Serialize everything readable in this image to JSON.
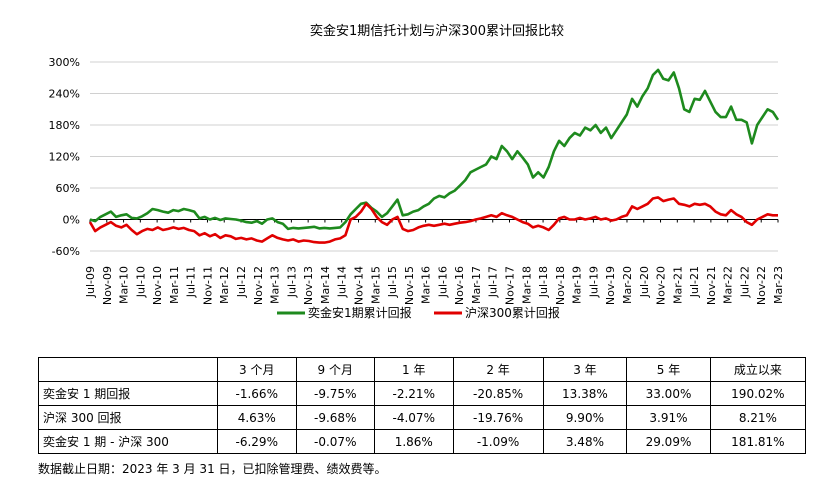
{
  "chart_data": {
    "type": "line",
    "title": "奕金安1期信托计划与沪深300累计回报比较",
    "y_ticks": [
      "300%",
      "240%",
      "180%",
      "120%",
      "60%",
      "0%",
      "-60%"
    ],
    "ylim": [
      -60,
      300
    ],
    "grid": "horizontal",
    "legend_position": "bottom",
    "x_ticks": [
      "Jul-09",
      "Nov-09",
      "Mar-10",
      "Jul-10",
      "Nov-10",
      "Mar-11",
      "Jul-11",
      "Nov-11",
      "Mar-12",
      "Jul-12",
      "Nov-12",
      "Mar-13",
      "Jul-13",
      "Nov-13",
      "Mar-14",
      "Jul-14",
      "Nov-14",
      "Mar-15",
      "Jul-15",
      "Nov-15",
      "Mar-16",
      "Jul-16",
      "Nov-16",
      "Mar-17",
      "Jul-17",
      "Nov-17",
      "Mar-18",
      "Jul-18",
      "Nov-18",
      "Mar-19",
      "Jul-19",
      "Nov-19",
      "Mar-20",
      "Jul-20",
      "Nov-20",
      "Mar-21",
      "Jul-21",
      "Nov-21",
      "Mar-22",
      "Jul-22",
      "Nov-22",
      "Mar-23"
    ],
    "series": [
      {
        "name": "奕金安1期累计回报",
        "color": "#1e8a1e",
        "points": [
          [
            0,
            0
          ],
          [
            1,
            -3
          ],
          [
            2,
            5
          ],
          [
            3,
            10
          ],
          [
            4,
            15
          ],
          [
            5,
            5
          ],
          [
            6,
            8
          ],
          [
            7,
            10
          ],
          [
            8,
            3
          ],
          [
            9,
            2
          ],
          [
            10,
            6
          ],
          [
            11,
            12
          ],
          [
            12,
            20
          ],
          [
            13,
            18
          ],
          [
            14,
            15
          ],
          [
            15,
            13
          ],
          [
            16,
            18
          ],
          [
            17,
            16
          ],
          [
            18,
            20
          ],
          [
            19,
            18
          ],
          [
            20,
            15
          ],
          [
            21,
            2
          ],
          [
            22,
            5
          ],
          [
            23,
            0
          ],
          [
            24,
            3
          ],
          [
            25,
            -1
          ],
          [
            26,
            2
          ],
          [
            27,
            1
          ],
          [
            28,
            0
          ],
          [
            29,
            -2
          ],
          [
            30,
            -5
          ],
          [
            31,
            -6
          ],
          [
            32,
            -3
          ],
          [
            33,
            -8
          ],
          [
            34,
            0
          ],
          [
            35,
            2
          ],
          [
            36,
            -5
          ],
          [
            37,
            -8
          ],
          [
            38,
            -18
          ],
          [
            39,
            -16
          ],
          [
            40,
            -17
          ],
          [
            41,
            -16
          ],
          [
            42,
            -15
          ],
          [
            43,
            -14
          ],
          [
            44,
            -17
          ],
          [
            45,
            -16
          ],
          [
            46,
            -17
          ],
          [
            47,
            -16
          ],
          [
            48,
            -15
          ],
          [
            49,
            -5
          ],
          [
            50,
            10
          ],
          [
            51,
            20
          ],
          [
            52,
            30
          ],
          [
            53,
            32
          ],
          [
            54,
            22
          ],
          [
            55,
            15
          ],
          [
            56,
            5
          ],
          [
            57,
            12
          ],
          [
            58,
            25
          ],
          [
            59,
            38
          ],
          [
            60,
            8
          ],
          [
            61,
            10
          ],
          [
            62,
            15
          ],
          [
            63,
            18
          ],
          [
            64,
            25
          ],
          [
            65,
            30
          ],
          [
            66,
            40
          ],
          [
            67,
            45
          ],
          [
            68,
            42
          ],
          [
            69,
            50
          ],
          [
            70,
            55
          ],
          [
            71,
            65
          ],
          [
            72,
            75
          ],
          [
            73,
            90
          ],
          [
            74,
            95
          ],
          [
            75,
            100
          ],
          [
            76,
            105
          ],
          [
            77,
            120
          ],
          [
            78,
            115
          ],
          [
            79,
            140
          ],
          [
            80,
            130
          ],
          [
            81,
            115
          ],
          [
            82,
            130
          ],
          [
            83,
            118
          ],
          [
            84,
            105
          ],
          [
            85,
            80
          ],
          [
            86,
            90
          ],
          [
            87,
            80
          ],
          [
            88,
            100
          ],
          [
            89,
            130
          ],
          [
            90,
            150
          ],
          [
            91,
            140
          ],
          [
            92,
            155
          ],
          [
            93,
            165
          ],
          [
            94,
            160
          ],
          [
            95,
            175
          ],
          [
            96,
            170
          ],
          [
            97,
            180
          ],
          [
            98,
            165
          ],
          [
            99,
            175
          ],
          [
            100,
            155
          ],
          [
            101,
            170
          ],
          [
            102,
            185
          ],
          [
            103,
            200
          ],
          [
            104,
            230
          ],
          [
            105,
            215
          ],
          [
            106,
            235
          ],
          [
            107,
            250
          ],
          [
            108,
            275
          ],
          [
            109,
            285
          ],
          [
            110,
            268
          ],
          [
            111,
            265
          ],
          [
            112,
            280
          ],
          [
            113,
            250
          ],
          [
            114,
            210
          ],
          [
            115,
            205
          ],
          [
            116,
            230
          ],
          [
            117,
            228
          ],
          [
            118,
            245
          ],
          [
            119,
            225
          ],
          [
            120,
            205
          ],
          [
            121,
            195
          ],
          [
            122,
            195
          ],
          [
            123,
            215
          ],
          [
            124,
            190
          ],
          [
            125,
            190
          ],
          [
            126,
            185
          ],
          [
            127,
            145
          ],
          [
            128,
            180
          ],
          [
            129,
            195
          ],
          [
            130,
            210
          ],
          [
            131,
            205
          ],
          [
            132,
            190
          ]
        ]
      },
      {
        "name": "沪深300累计回报",
        "color": "#e00000",
        "points": [
          [
            0,
            -5
          ],
          [
            1,
            -22
          ],
          [
            2,
            -15
          ],
          [
            3,
            -10
          ],
          [
            4,
            -5
          ],
          [
            5,
            -12
          ],
          [
            6,
            -15
          ],
          [
            7,
            -10
          ],
          [
            8,
            -20
          ],
          [
            9,
            -28
          ],
          [
            10,
            -22
          ],
          [
            11,
            -18
          ],
          [
            12,
            -20
          ],
          [
            13,
            -15
          ],
          [
            14,
            -20
          ],
          [
            15,
            -18
          ],
          [
            16,
            -15
          ],
          [
            17,
            -18
          ],
          [
            18,
            -16
          ],
          [
            19,
            -20
          ],
          [
            20,
            -22
          ],
          [
            21,
            -30
          ],
          [
            22,
            -26
          ],
          [
            23,
            -32
          ],
          [
            24,
            -28
          ],
          [
            25,
            -35
          ],
          [
            26,
            -30
          ],
          [
            27,
            -32
          ],
          [
            28,
            -37
          ],
          [
            29,
            -35
          ],
          [
            30,
            -38
          ],
          [
            31,
            -36
          ],
          [
            32,
            -40
          ],
          [
            33,
            -42
          ],
          [
            34,
            -36
          ],
          [
            35,
            -30
          ],
          [
            36,
            -35
          ],
          [
            37,
            -38
          ],
          [
            38,
            -40
          ],
          [
            39,
            -38
          ],
          [
            40,
            -42
          ],
          [
            41,
            -40
          ],
          [
            42,
            -41
          ],
          [
            43,
            -43
          ],
          [
            44,
            -44
          ],
          [
            45,
            -44
          ],
          [
            46,
            -42
          ],
          [
            47,
            -38
          ],
          [
            48,
            -36
          ],
          [
            49,
            -30
          ],
          [
            50,
            0
          ],
          [
            51,
            5
          ],
          [
            52,
            15
          ],
          [
            53,
            30
          ],
          [
            54,
            20
          ],
          [
            55,
            5
          ],
          [
            56,
            -5
          ],
          [
            57,
            -10
          ],
          [
            58,
            0
          ],
          [
            59,
            5
          ],
          [
            60,
            -18
          ],
          [
            61,
            -22
          ],
          [
            62,
            -20
          ],
          [
            63,
            -15
          ],
          [
            64,
            -12
          ],
          [
            65,
            -10
          ],
          [
            66,
            -12
          ],
          [
            67,
            -10
          ],
          [
            68,
            -8
          ],
          [
            69,
            -10
          ],
          [
            70,
            -8
          ],
          [
            71,
            -6
          ],
          [
            72,
            -5
          ],
          [
            73,
            -3
          ],
          [
            74,
            0
          ],
          [
            75,
            2
          ],
          [
            76,
            5
          ],
          [
            77,
            8
          ],
          [
            78,
            5
          ],
          [
            79,
            12
          ],
          [
            80,
            8
          ],
          [
            81,
            5
          ],
          [
            82,
            0
          ],
          [
            83,
            -5
          ],
          [
            84,
            -8
          ],
          [
            85,
            -15
          ],
          [
            86,
            -12
          ],
          [
            87,
            -15
          ],
          [
            88,
            -20
          ],
          [
            89,
            -10
          ],
          [
            90,
            2
          ],
          [
            91,
            5
          ],
          [
            92,
            0
          ],
          [
            93,
            0
          ],
          [
            94,
            3
          ],
          [
            95,
            0
          ],
          [
            96,
            2
          ],
          [
            97,
            5
          ],
          [
            98,
            0
          ],
          [
            99,
            2
          ],
          [
            100,
            -2
          ],
          [
            101,
            0
          ],
          [
            102,
            5
          ],
          [
            103,
            8
          ],
          [
            104,
            25
          ],
          [
            105,
            20
          ],
          [
            106,
            25
          ],
          [
            107,
            30
          ],
          [
            108,
            40
          ],
          [
            109,
            42
          ],
          [
            110,
            35
          ],
          [
            111,
            38
          ],
          [
            112,
            40
          ],
          [
            113,
            30
          ],
          [
            114,
            28
          ],
          [
            115,
            25
          ],
          [
            116,
            30
          ],
          [
            117,
            28
          ],
          [
            118,
            30
          ],
          [
            119,
            25
          ],
          [
            120,
            15
          ],
          [
            121,
            10
          ],
          [
            122,
            8
          ],
          [
            123,
            18
          ],
          [
            124,
            10
          ],
          [
            125,
            5
          ],
          [
            126,
            -5
          ],
          [
            127,
            -10
          ],
          [
            128,
            0
          ],
          [
            129,
            5
          ],
          [
            130,
            10
          ],
          [
            131,
            8
          ],
          [
            132,
            8
          ]
        ]
      }
    ]
  },
  "table": {
    "headers": [
      "",
      "3 个月",
      "9 个月",
      "1 年",
      "2 年",
      "3 年",
      "5 年",
      "成立以来"
    ],
    "rows": [
      [
        "奕金安 1 期回报",
        "-1.66%",
        "-9.75%",
        "-2.21%",
        "-20.85%",
        "13.38%",
        "33.00%",
        "190.02%"
      ],
      [
        "沪深 300 回报",
        "4.63%",
        "-9.68%",
        "-4.07%",
        "-19.76%",
        "9.90%",
        "3.91%",
        "8.21%"
      ],
      [
        "奕金安 1 期 - 沪深 300",
        "-6.29%",
        "-0.07%",
        "1.86%",
        "-1.09%",
        "3.48%",
        "29.09%",
        "181.81%"
      ]
    ]
  },
  "footnote": "数据截止日期：2023 年 3 月 31 日，已扣除管理费、绩效费等。"
}
